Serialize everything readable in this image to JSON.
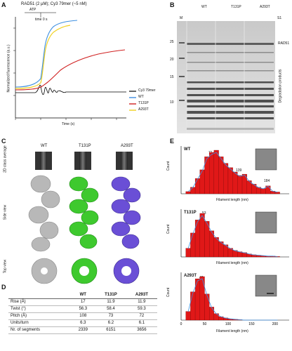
{
  "panels": {
    "a": "A",
    "b": "B",
    "c": "C",
    "d": "D",
    "e": "E"
  },
  "panel_a": {
    "header_text": "RAD51 (2 μM); Cy3 79mer (~5 nM)",
    "header_sub": "ATP",
    "mix_label": "time 0 s",
    "ylabel": "Normalized fluorescence (a.u.)",
    "xlabel": "Time (s)"
  },
  "panel_b": {
    "groups": [
      "WT",
      "T131P",
      "A293T"
    ],
    "lane_m": "M",
    "band_label": "RAD51",
    "side_label": "Degradation products",
    "marker_values": [
      "25",
      "20",
      "15",
      "10"
    ],
    "s1_label": "S1"
  },
  "panel_c": {
    "columns": [
      "WT",
      "T131P",
      "A293T"
    ],
    "rows": [
      "2D class average",
      "Side view",
      "Top view"
    ],
    "colors": {
      "WT": "#b8b8b8",
      "T131P": "#3ec92e",
      "A293T": "#6a4fd6"
    }
  },
  "panel_d": {
    "headers": [
      "",
      "WT",
      "T131P",
      "A293T"
    ],
    "rows": [
      [
        "Rise (Å)",
        "17",
        "11.9",
        "11.9"
      ],
      [
        "Twist (°)",
        "56.3",
        "58.4",
        "59.3"
      ],
      [
        "Pitch (Å)",
        "108",
        "73",
        "72"
      ],
      [
        "Units/turn",
        "6.3",
        "6.2",
        "6.1"
      ],
      [
        "Nr. of segments",
        "2339",
        "6151",
        "3656"
      ]
    ]
  },
  "panel_e": {
    "xlabel": "Filament length (nm)",
    "ylabel": "Count",
    "subpanels": [
      {
        "name": "WT",
        "peaks": [
          "71",
          "139",
          "184"
        ]
      },
      {
        "name": "T131P",
        "peaks": [
          "53"
        ]
      },
      {
        "name": "A293T",
        "peaks": [
          "42"
        ]
      }
    ],
    "ticks": [
      "0",
      "50",
      "100",
      "150",
      "200"
    ]
  },
  "chart_data": [
    {
      "type": "line",
      "xlabel": "Time (s)",
      "ylabel": "Normalized fluorescence (a.u.)",
      "legend_position": "right",
      "series": [
        {
          "name": "Cy3 79mer",
          "color": "#000000"
        },
        {
          "name": "WT",
          "color": "#3d8fe0"
        },
        {
          "name": "T131P",
          "color": "#d02020"
        },
        {
          "name": "A293T",
          "color": "#f0d020"
        }
      ]
    },
    {
      "type": "bar",
      "title": "WT",
      "xlabel": "Filament length (nm)",
      "ylabel": "Count",
      "x": [
        15,
        25,
        35,
        45,
        55,
        65,
        75,
        85,
        95,
        105,
        115,
        125,
        135,
        145,
        155,
        165,
        175,
        185,
        195,
        205
      ],
      "values": [
        0.05,
        0.15,
        0.35,
        0.55,
        0.85,
        0.95,
        1.0,
        0.85,
        0.7,
        0.6,
        0.5,
        0.42,
        0.45,
        0.3,
        0.22,
        0.15,
        0.12,
        0.18,
        0.06,
        0.04
      ]
    },
    {
      "type": "bar",
      "title": "T131P",
      "xlabel": "Filament length (nm)",
      "ylabel": "Count",
      "x": [
        15,
        25,
        35,
        45,
        55,
        65,
        75,
        85,
        95,
        105,
        115,
        125,
        135,
        145,
        155,
        165,
        175,
        185,
        195,
        205
      ],
      "values": [
        0.2,
        0.55,
        0.85,
        1.0,
        0.82,
        0.6,
        0.45,
        0.35,
        0.28,
        0.2,
        0.15,
        0.12,
        0.1,
        0.07,
        0.05,
        0.04,
        0.03,
        0.02,
        0.02,
        0.01
      ]
    },
    {
      "type": "bar",
      "title": "A293T",
      "xlabel": "Filament length (nm)",
      "ylabel": "Count",
      "x": [
        15,
        25,
        35,
        45,
        55,
        65,
        75,
        85,
        95,
        105,
        115,
        125,
        135,
        145,
        155,
        165,
        175,
        185,
        195,
        205
      ],
      "values": [
        0.2,
        0.65,
        0.95,
        1.0,
        0.6,
        0.3,
        0.15,
        0.08,
        0.05,
        0.03,
        0.02,
        0.01,
        0,
        0,
        0,
        0,
        0,
        0,
        0,
        0
      ]
    }
  ]
}
